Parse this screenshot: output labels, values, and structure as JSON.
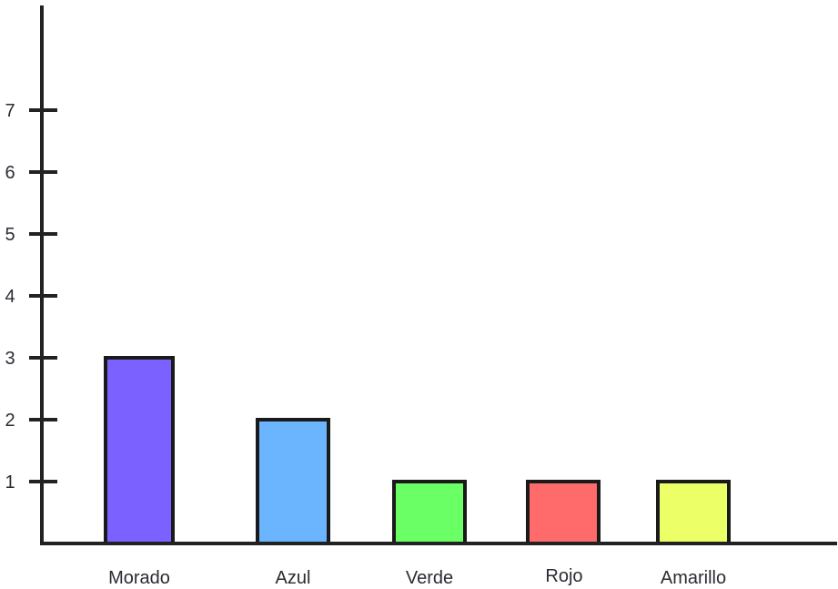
{
  "chart_data": {
    "type": "bar",
    "categories": [
      "Morado",
      "Azul",
      "Verde",
      "Rojo",
      "Amarillo"
    ],
    "values": [
      3,
      2,
      1,
      1,
      1
    ],
    "colors": [
      "#7B61FF",
      "#6BB5FF",
      "#6BFF66",
      "#FF6B6B",
      "#ECFF66"
    ],
    "y_ticks": [
      "1",
      "2",
      "3",
      "4",
      "5",
      "6",
      "7"
    ],
    "ylim": [
      0,
      8.2
    ],
    "title": "",
    "xlabel": "",
    "ylabel": "",
    "grid": false,
    "legend": "none"
  }
}
